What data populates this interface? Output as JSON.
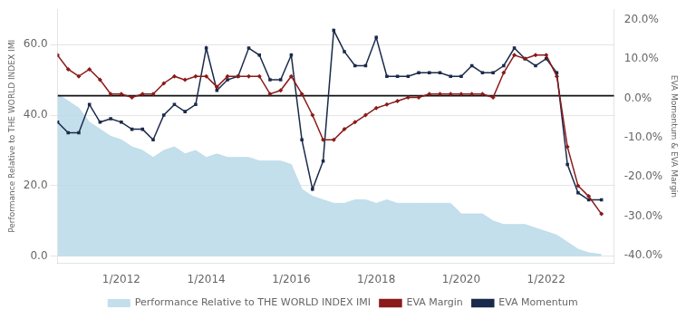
{
  "chart_data": {
    "type": "line",
    "y_label": "Performance Relative to THE WORLD INDEX IMI",
    "y2_label": "EVA Momentum & EVA Margin",
    "x": [
      2010.5,
      2010.75,
      2011.0,
      2011.25,
      2011.5,
      2011.75,
      2012.0,
      2012.25,
      2012.5,
      2012.75,
      2013.0,
      2013.25,
      2013.5,
      2013.75,
      2014.0,
      2014.25,
      2014.5,
      2014.75,
      2015.0,
      2015.25,
      2015.5,
      2015.75,
      2016.0,
      2016.25,
      2016.5,
      2016.75,
      2017.0,
      2017.25,
      2017.5,
      2017.75,
      2018.0,
      2018.25,
      2018.5,
      2018.75,
      2019.0,
      2019.25,
      2019.5,
      2019.75,
      2020.0,
      2020.25,
      2020.5,
      2020.75,
      2021.0,
      2021.25,
      2021.5,
      2021.75,
      2022.0,
      2022.25,
      2022.5,
      2022.75,
      2023.0,
      2023.3
    ],
    "xlim": [
      2010.5,
      2023.6
    ],
    "xticks": [
      {
        "value": 2012,
        "label": "1/2012"
      },
      {
        "value": 2014,
        "label": "1/2014"
      },
      {
        "value": 2016,
        "label": "1/2016"
      },
      {
        "value": 2018,
        "label": "1/2018"
      },
      {
        "value": 2020,
        "label": "1/2020"
      },
      {
        "value": 2022,
        "label": "1/2022"
      }
    ],
    "ylim": [
      -2,
      70
    ],
    "yticks": [
      {
        "value": 0,
        "label": "0.0"
      },
      {
        "value": 20,
        "label": "20.0"
      },
      {
        "value": 40,
        "label": "40.0"
      },
      {
        "value": 60,
        "label": "60.0"
      }
    ],
    "y2lim": [
      -0.42,
      0.2267
    ],
    "y2ticks": [
      {
        "value": -0.4,
        "label": "-40.0%"
      },
      {
        "value": -0.3,
        "label": "-30.0%"
      },
      {
        "value": -0.2,
        "label": "-20.0%"
      },
      {
        "value": -0.1,
        "label": "-10.0%"
      },
      {
        "value": 0.0,
        "label": "0.0%"
      },
      {
        "value": 0.1,
        "label": "10.0%"
      },
      {
        "value": 0.2,
        "label": "20.0%"
      }
    ],
    "grid": "y",
    "legend": "bottom",
    "hline": {
      "y": 45.5,
      "color": "#111111"
    },
    "series": [
      {
        "name": "Performance Relative to THE WORLD INDEX IMI",
        "type": "area",
        "color": "#b8d9e8",
        "values": [
          46,
          44,
          42,
          38,
          36,
          34,
          33,
          31,
          30,
          28,
          30,
          31,
          29,
          30,
          28,
          29,
          28,
          28,
          28,
          27,
          27,
          27,
          26,
          19,
          17,
          16,
          15,
          15,
          16,
          16,
          15,
          16,
          15,
          15,
          15,
          15,
          15,
          15,
          12,
          12,
          12,
          10,
          9,
          9,
          9,
          8,
          7,
          6,
          4,
          2,
          1,
          0.5
        ]
      },
      {
        "name": "EVA Margin",
        "type": "line",
        "color": "#8b1a1a",
        "marker": "diamond",
        "values": [
          57,
          53,
          51,
          53,
          50,
          46,
          46,
          45,
          46,
          46,
          49,
          51,
          50,
          51,
          51,
          48,
          51,
          51,
          51,
          51,
          46,
          47,
          51,
          46,
          40,
          33,
          33,
          36,
          38,
          40,
          42,
          43,
          44,
          45,
          45,
          46,
          46,
          46,
          46,
          46,
          46,
          45,
          52,
          57,
          56,
          57,
          57,
          51,
          31,
          20,
          17,
          12
        ]
      },
      {
        "name": "EVA Momentum",
        "type": "line",
        "color": "#1a2a4a",
        "marker": "square",
        "values": [
          38,
          35,
          35,
          43,
          38,
          39,
          38,
          36,
          36,
          33,
          40,
          43,
          41,
          43,
          59,
          47,
          50,
          51,
          59,
          57,
          50,
          50,
          57,
          33,
          19,
          27,
          64,
          58,
          54,
          54,
          62,
          51,
          51,
          51,
          52,
          52,
          52,
          51,
          51,
          54,
          52,
          52,
          54,
          59,
          56,
          54,
          56,
          52,
          26,
          18,
          16,
          16
        ]
      }
    ]
  }
}
